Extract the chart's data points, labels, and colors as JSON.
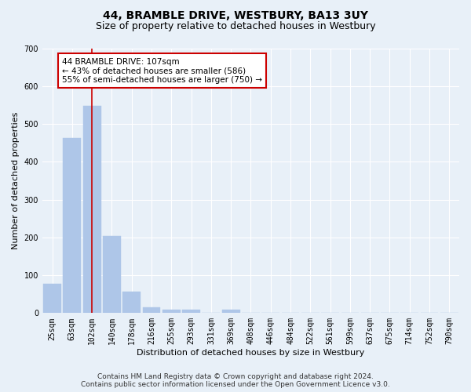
{
  "title": "44, BRAMBLE DRIVE, WESTBURY, BA13 3UY",
  "subtitle": "Size of property relative to detached houses in Westbury",
  "xlabel": "Distribution of detached houses by size in Westbury",
  "ylabel": "Number of detached properties",
  "categories": [
    "25sqm",
    "63sqm",
    "102sqm",
    "140sqm",
    "178sqm",
    "216sqm",
    "255sqm",
    "293sqm",
    "331sqm",
    "369sqm",
    "408sqm",
    "446sqm",
    "484sqm",
    "522sqm",
    "561sqm",
    "599sqm",
    "637sqm",
    "675sqm",
    "714sqm",
    "752sqm",
    "790sqm"
  ],
  "values": [
    78,
    462,
    548,
    203,
    57,
    15,
    10,
    8,
    0,
    9,
    0,
    0,
    0,
    0,
    0,
    0,
    0,
    0,
    0,
    0,
    0
  ],
  "bar_color": "#aec6e8",
  "property_line_x": 2,
  "property_size": 107,
  "annotation_line1": "44 BRAMBLE DRIVE: 107sqm",
  "annotation_line2": "← 43% of detached houses are smaller (586)",
  "annotation_line3": "55% of semi-detached houses are larger (750) →",
  "annotation_box_color": "#ffffff",
  "annotation_box_edge_color": "#cc0000",
  "ylim": [
    0,
    700
  ],
  "yticks": [
    0,
    100,
    200,
    300,
    400,
    500,
    600,
    700
  ],
  "footer_line1": "Contains HM Land Registry data © Crown copyright and database right 2024.",
  "footer_line2": "Contains public sector information licensed under the Open Government Licence v3.0.",
  "bg_color": "#e8f0f8",
  "plot_bg_color": "#e8f0f8",
  "grid_color": "#ffffff",
  "title_fontsize": 10,
  "subtitle_fontsize": 9,
  "axis_label_fontsize": 8,
  "tick_fontsize": 7,
  "annotation_fontsize": 7.5,
  "footer_fontsize": 6.5
}
